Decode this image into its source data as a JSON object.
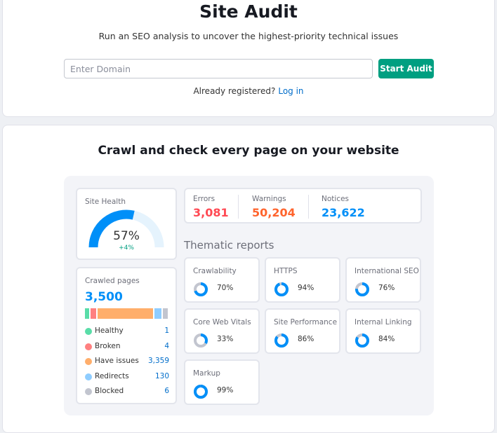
{
  "header": {
    "title": "Site Audit",
    "subtitle": "Run an SEO analysis to uncover the highest-priority technical issues",
    "domain_placeholder": "Enter Domain",
    "domain_value": "",
    "start_button": "Start Audit",
    "registered_text": "Already registered?",
    "login_link": "Log in"
  },
  "section": {
    "title": "Crawl and check every page on your website"
  },
  "site_health": {
    "label": "Site Health",
    "value": 57,
    "value_text": "57%",
    "delta": "+4%",
    "color": "#008ff8",
    "track_color": "#e5f3fd"
  },
  "crawled": {
    "label": "Crawled pages",
    "total": "3,500",
    "items": [
      {
        "name": "Healthy",
        "value": "1",
        "count": 1,
        "color": "#59dda8"
      },
      {
        "name": "Broken",
        "value": "4",
        "count": 4,
        "color": "#ff8080"
      },
      {
        "name": "Have issues",
        "value": "3,359",
        "count": 3359,
        "color": "#ffae6b"
      },
      {
        "name": "Redirects",
        "value": "130",
        "count": 130,
        "color": "#8fcdff"
      },
      {
        "name": "Blocked",
        "value": "6",
        "count": 6,
        "color": "#c2c5cf"
      }
    ]
  },
  "issues": [
    {
      "label": "Errors",
      "value": "3,081",
      "color": "#ff4953"
    },
    {
      "label": "Warnings",
      "value": "50,204",
      "color": "#ff642d"
    },
    {
      "label": "Notices",
      "value": "23,622",
      "color": "#008ff8"
    }
  ],
  "thematic": {
    "title": "Thematic reports",
    "reports": [
      {
        "name": "Crawlability",
        "value": 70,
        "text": "70%"
      },
      {
        "name": "HTTPS",
        "value": 94,
        "text": "94%"
      },
      {
        "name": "International SEO",
        "value": 76,
        "text": "76%"
      },
      {
        "name": "Core Web Vitals",
        "value": 33,
        "text": "33%"
      },
      {
        "name": "Site Performance",
        "value": 86,
        "text": "86%"
      },
      {
        "name": "Internal Linking",
        "value": 84,
        "text": "84%"
      },
      {
        "name": "Markup",
        "value": 99,
        "text": "99%"
      }
    ]
  }
}
